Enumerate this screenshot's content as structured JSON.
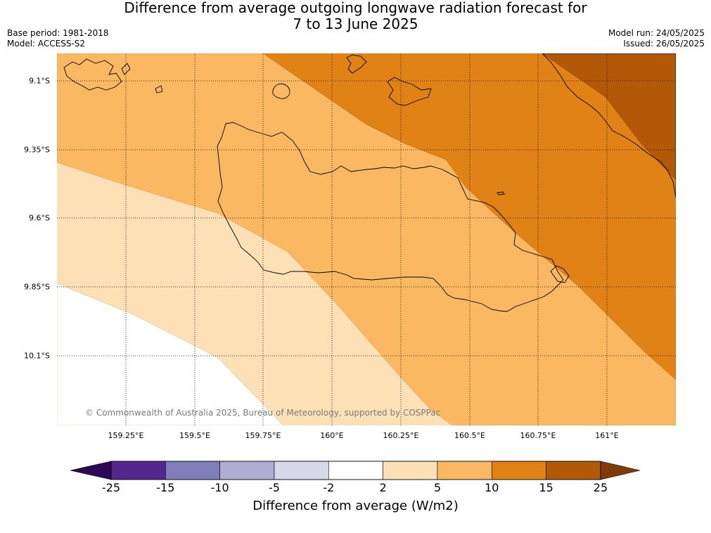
{
  "title": {
    "line1": "Difference from average outgoing longwave radiation forecast for",
    "line2": "7 to 13 June 2025"
  },
  "meta_left": {
    "base_period": "Base period: 1981-2018",
    "model": "Model: ACCESS-S2"
  },
  "meta_right": {
    "model_run": "Model run: 24/05/2025",
    "issued": "Issued: 26/05/2025"
  },
  "map": {
    "lat_labels": [
      "9.1°S",
      "9.35°S",
      "9.6°S",
      "9.85°S",
      "10.1°S"
    ],
    "lon_labels": [
      "159.25°E",
      "159.5°E",
      "159.75°E",
      "160°E",
      "160.25°E",
      "160.5°E",
      "160.75°E",
      "161°E"
    ],
    "gridlines": "dotted",
    "copyright": "© Commonwealth of Australia 2025, Bureau of Meteorology, supported by COSPPac"
  },
  "colorbar": {
    "ticks": [
      "-25",
      "-15",
      "-10",
      "-5",
      "-2",
      "2",
      "5",
      "10",
      "15",
      "25"
    ],
    "colors": [
      "#2e0854",
      "#54278f",
      "#807dba",
      "#b1acd4",
      "#d8d8eb",
      "#ffffff",
      "#fde0b6",
      "#fab862",
      "#e08216",
      "#b35806",
      "#7f3b08"
    ],
    "label": "Difference from average (W/m2)",
    "extend": "both"
  },
  "field_colors": {
    "white": "#ffffff",
    "light": "#fde0b6",
    "mid": "#fab862",
    "orange": "#e08216",
    "dark": "#b35806",
    "coast": "#000000"
  }
}
